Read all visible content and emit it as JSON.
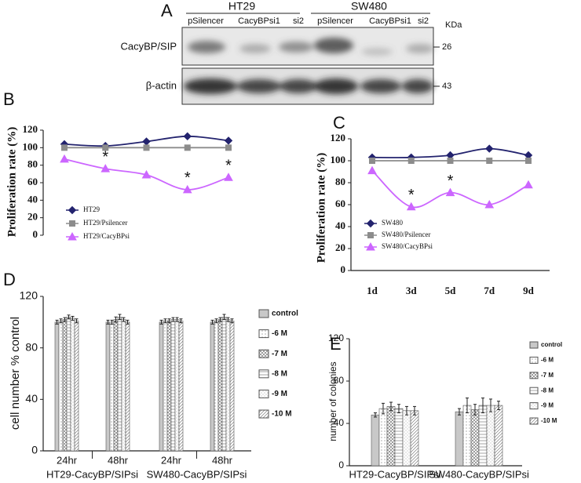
{
  "blot": {
    "label": "A",
    "groups": [
      "HT29",
      "SW480"
    ],
    "lanes": [
      "pSilencer",
      "CacyBPsi1",
      "si2",
      "pSilencer",
      "CacyBPsi1",
      "si2"
    ],
    "unit": "KDa",
    "rows": [
      {
        "name": "CacyBP/SIP",
        "marker": 26
      },
      {
        "name": "β-actin",
        "marker": 43
      }
    ]
  },
  "chart_data": [
    {
      "type": "line",
      "panel": "B",
      "ylabel": "Proliferation rate (%)",
      "categories": [
        null,
        null,
        null,
        null,
        null
      ],
      "ylim": [
        0,
        120
      ],
      "yticks": [
        0,
        20,
        40,
        60,
        80,
        100,
        120
      ],
      "legend": "lower left",
      "series": [
        {
          "name": "HT29",
          "color": "#23236e",
          "values": [
            104,
            102,
            107,
            113,
            108
          ]
        },
        {
          "name": "HT29/Psilencer",
          "color": "#8c8c8c",
          "values": [
            100,
            100,
            100,
            100,
            100
          ]
        },
        {
          "name": "HT29/CacyBPsi",
          "color": "#cc66ff",
          "values": [
            87,
            76,
            69,
            52,
            66
          ]
        }
      ],
      "significance": [
        null,
        "*",
        null,
        "*",
        "*"
      ]
    },
    {
      "type": "line",
      "panel": "C",
      "ylabel": "Proliferation rate (%)",
      "categories": [
        "1d",
        "3d",
        "5d",
        "7d",
        "9d"
      ],
      "ylim": [
        0,
        120
      ],
      "yticks": [
        0,
        20,
        40,
        60,
        80,
        100,
        120
      ],
      "legend": "lower left",
      "series": [
        {
          "name": "SW480",
          "color": "#23236e",
          "values": [
            103,
            103,
            105,
            111,
            105
          ]
        },
        {
          "name": "SW480/Psilencer",
          "color": "#8c8c8c",
          "values": [
            100,
            100,
            100,
            100,
            100
          ]
        },
        {
          "name": "SW480/CacyBPsi",
          "color": "#cc66ff",
          "values": [
            91,
            58,
            71,
            60,
            78
          ]
        }
      ],
      "significance": [
        null,
        "*",
        "*",
        null,
        null
      ]
    },
    {
      "type": "bar",
      "panel": "D",
      "ylabel": "cell number % control",
      "categories": [
        "24hr",
        "48hr",
        "24hr",
        "48hr"
      ],
      "groups": [
        "HT29-CacyBP/SIPsi",
        "SW480-CacyBP/SIPsi"
      ],
      "ylim": [
        0,
        120
      ],
      "yticks": [
        0,
        40,
        80,
        120
      ],
      "legend": "right",
      "series": [
        {
          "name": "control",
          "color": "#c8c8c8",
          "values": [
            100,
            100,
            100,
            100
          ],
          "errors": [
            1.5,
            1.5,
            1.5,
            1.5
          ]
        },
        {
          "name": "-6 M",
          "color": "#ffffff",
          "values": [
            101,
            100,
            101,
            101
          ],
          "errors": [
            1.5,
            1.5,
            1.5,
            1.5
          ]
        },
        {
          "name": "-7 M",
          "color": "#ffffff",
          "values": [
            102,
            102,
            101,
            102
          ],
          "errors": [
            1.5,
            2,
            1.5,
            1.5
          ]
        },
        {
          "name": "-8 M",
          "color": "#ffffff",
          "values": [
            104,
            104,
            102,
            104
          ],
          "errors": [
            1.5,
            2,
            1.5,
            2
          ]
        },
        {
          "name": "-9 M",
          "color": "#ffffff",
          "values": [
            103,
            102,
            102,
            102
          ],
          "errors": [
            1.5,
            1.5,
            1.5,
            1.5
          ]
        },
        {
          "name": "-10 M",
          "color": "#ffffff",
          "values": [
            101,
            100,
            101,
            101
          ],
          "errors": [
            1.5,
            1.5,
            1.5,
            1.5
          ]
        }
      ]
    },
    {
      "type": "bar",
      "panel": "E",
      "ylabel": "number of colonies",
      "categories": [
        "HT29-CacyBP/SIPsi",
        "SW480-CacyBP/SIPsi"
      ],
      "ylim": [
        0,
        120
      ],
      "yticks": [
        0,
        40,
        80,
        120
      ],
      "legend": "right",
      "series": [
        {
          "name": "control",
          "color": "#c8c8c8",
          "values": [
            48,
            51
          ],
          "errors": [
            2,
            3
          ]
        },
        {
          "name": "-6 M",
          "color": "#ffffff",
          "values": [
            54,
            57
          ],
          "errors": [
            5,
            7
          ]
        },
        {
          "name": "-7 M",
          "color": "#ffffff",
          "values": [
            56,
            53
          ],
          "errors": [
            4,
            5
          ]
        },
        {
          "name": "-8 M",
          "color": "#ffffff",
          "values": [
            54,
            57
          ],
          "errors": [
            4,
            7
          ]
        },
        {
          "name": "-9 M",
          "color": "#ffffff",
          "values": [
            52,
            57
          ],
          "errors": [
            4,
            6
          ]
        },
        {
          "name": "-10 M",
          "color": "#ffffff",
          "values": [
            52,
            57
          ],
          "errors": [
            4,
            4
          ]
        }
      ]
    }
  ]
}
